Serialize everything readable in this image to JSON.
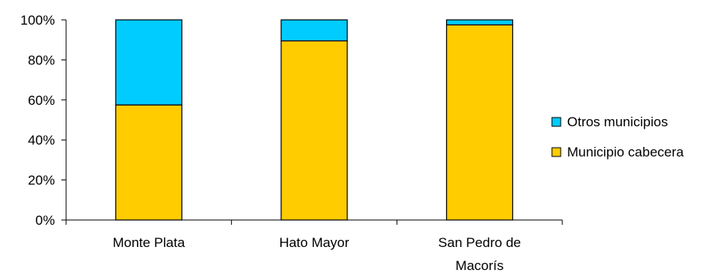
{
  "chart_data": {
    "type": "bar",
    "stacked": true,
    "percent": true,
    "categories": [
      [
        "Monte Plata"
      ],
      [
        "Hato Mayor"
      ],
      [
        "San Pedro de",
        "Macorís"
      ]
    ],
    "series": [
      {
        "name": "Municipio cabecera",
        "color": "#FFCC00",
        "values": [
          57.5,
          89.5,
          97.5
        ]
      },
      {
        "name": "Otros municipios",
        "color": "#00CCFF",
        "values": [
          42.5,
          10.5,
          2.5
        ]
      }
    ],
    "y_ticks": [
      "0%",
      "20%",
      "40%",
      "60%",
      "80%",
      "100%"
    ],
    "ylim": [
      0,
      100
    ],
    "grid": false,
    "legend": {
      "position": "right",
      "order": [
        "Otros municipios",
        "Municipio cabecera"
      ]
    }
  }
}
